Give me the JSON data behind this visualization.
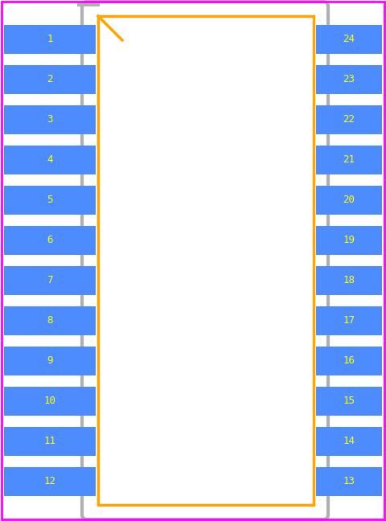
{
  "bg_color": "#ffffff",
  "border_color": "#ff00ff",
  "pad_color": "#4d8cff",
  "pad_text_color": "#ffff00",
  "body_outline_color": "#ffa500",
  "body_fill_color": "#ffffff",
  "courtyard_color": "#b0b0b0",
  "pin1_marker_color": "#ffa500",
  "num_pins_per_side": 12,
  "left_pins": [
    1,
    2,
    3,
    4,
    5,
    6,
    7,
    8,
    9,
    10,
    11,
    12
  ],
  "right_pins": [
    24,
    23,
    22,
    21,
    20,
    19,
    18,
    17,
    16,
    15,
    14,
    13
  ],
  "fig_width": 4.8,
  "fig_height": 6.48,
  "dpi": 100,
  "font_size": 9
}
